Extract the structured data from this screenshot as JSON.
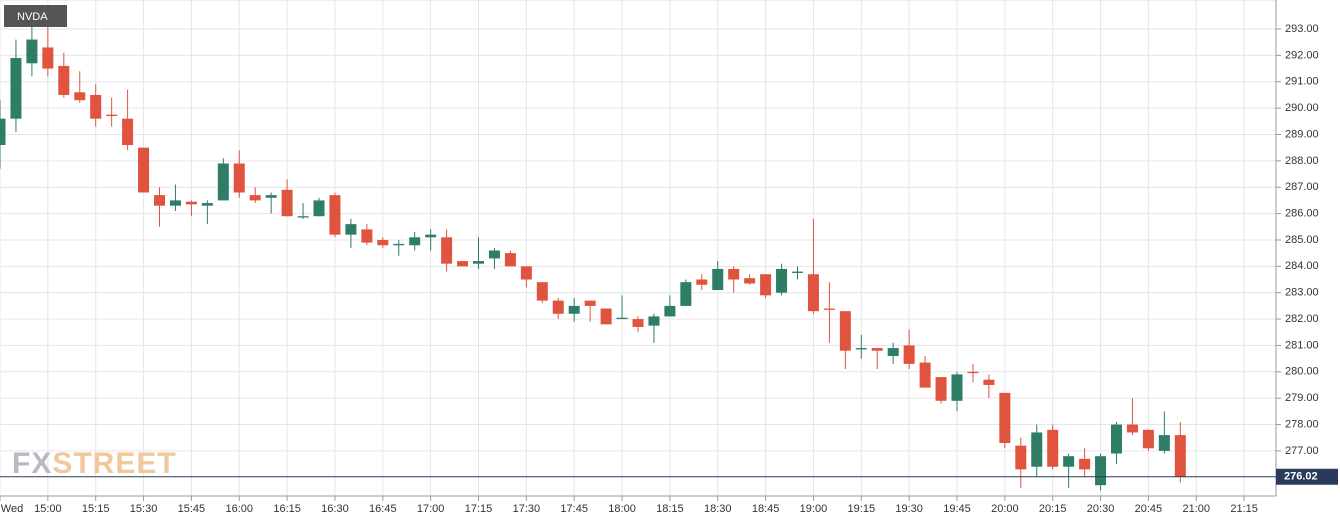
{
  "chart_data": {
    "type": "candlestick",
    "title": "NVDA",
    "watermark": [
      "FX",
      "STREET"
    ],
    "x": [
      "14:45",
      "14:50",
      "14:55",
      "15:00",
      "15:05",
      "15:10",
      "15:15",
      "15:20",
      "15:25",
      "15:30",
      "15:35",
      "15:40",
      "15:45",
      "15:50",
      "15:55",
      "16:00",
      "16:05",
      "16:10",
      "16:15",
      "16:20",
      "16:25",
      "16:30",
      "16:35",
      "16:40",
      "16:45",
      "16:50",
      "16:55",
      "17:00",
      "17:05",
      "17:10",
      "17:15",
      "17:20",
      "17:25",
      "17:30",
      "17:35",
      "17:40",
      "17:45",
      "17:50",
      "17:55",
      "18:00",
      "18:05",
      "18:10",
      "18:15",
      "18:20",
      "18:25",
      "18:30",
      "18:35",
      "18:40",
      "18:45",
      "18:50",
      "18:55",
      "19:00",
      "19:05",
      "19:10",
      "19:15",
      "19:20",
      "19:25",
      "19:30",
      "19:35",
      "19:40",
      "19:45",
      "19:50",
      "19:55",
      "20:00",
      "20:05",
      "20:10",
      "20:15",
      "20:20",
      "20:25",
      "20:30",
      "20:35",
      "20:40",
      "20:45",
      "20:50",
      "20:55"
    ],
    "open": [
      288.6,
      289.6,
      291.7,
      292.3,
      291.6,
      290.6,
      290.5,
      289.75,
      289.6,
      288.5,
      286.7,
      286.3,
      286.45,
      286.3,
      286.5,
      287.9,
      286.7,
      286.6,
      286.9,
      285.85,
      285.9,
      286.7,
      285.2,
      285.4,
      285.0,
      284.8,
      284.8,
      285.1,
      285.1,
      284.2,
      284.1,
      284.3,
      284.5,
      284.0,
      283.4,
      282.7,
      282.2,
      282.7,
      282.4,
      282.0,
      282.0,
      281.75,
      282.1,
      282.5,
      283.5,
      283.1,
      283.9,
      283.55,
      283.7,
      283.0,
      283.75,
      283.7,
      282.4,
      282.3,
      280.85,
      280.9,
      280.6,
      281.0,
      280.35,
      279.8,
      278.9,
      280.0,
      279.7,
      279.2,
      277.2,
      276.4,
      277.8,
      276.4,
      276.7,
      275.7,
      276.9,
      278.0,
      277.8,
      277.0,
      277.6
    ],
    "high": [
      290.3,
      292.6,
      293.2,
      293.2,
      292.1,
      291.4,
      290.9,
      290.4,
      290.7,
      288.5,
      287.0,
      287.1,
      286.5,
      286.5,
      288.1,
      288.4,
      287.0,
      286.8,
      287.3,
      286.4,
      286.6,
      286.8,
      285.8,
      285.6,
      285.1,
      285.0,
      285.3,
      285.4,
      285.4,
      284.2,
      285.1,
      284.7,
      284.6,
      284.0,
      283.4,
      282.8,
      282.8,
      282.7,
      282.4,
      282.9,
      282.1,
      282.2,
      282.9,
      283.5,
      283.7,
      284.2,
      284.0,
      283.7,
      283.7,
      284.1,
      284.0,
      285.8,
      283.4,
      282.3,
      281.4,
      280.9,
      281.1,
      281.6,
      280.6,
      279.8,
      280.0,
      280.3,
      279.9,
      279.2,
      277.5,
      278.0,
      278.0,
      276.9,
      277.1,
      276.9,
      278.1,
      279.0,
      277.8,
      278.5,
      278.1
    ],
    "low": [
      287.7,
      289.1,
      291.2,
      291.2,
      290.4,
      290.2,
      289.3,
      289.3,
      288.4,
      286.8,
      285.5,
      286.1,
      285.9,
      285.6,
      286.5,
      286.6,
      286.4,
      286.0,
      285.9,
      285.8,
      285.9,
      285.1,
      284.7,
      284.8,
      284.7,
      284.4,
      284.6,
      284.6,
      283.8,
      284.0,
      283.9,
      283.9,
      284.0,
      283.2,
      282.6,
      282.0,
      281.9,
      281.9,
      281.8,
      282.0,
      281.5,
      281.1,
      282.1,
      282.5,
      283.1,
      283.1,
      283.0,
      283.3,
      282.8,
      282.9,
      283.5,
      282.2,
      281.1,
      280.1,
      280.5,
      280.1,
      280.3,
      280.1,
      279.4,
      278.8,
      278.5,
      279.6,
      279.0,
      277.1,
      275.6,
      276.0,
      276.3,
      275.6,
      276.0,
      275.5,
      276.5,
      277.6,
      277.0,
      276.9,
      275.8
    ],
    "close": [
      289.6,
      291.9,
      292.6,
      291.5,
      290.5,
      290.3,
      289.6,
      289.7,
      288.6,
      286.8,
      286.3,
      286.5,
      286.35,
      286.4,
      287.9,
      286.8,
      286.5,
      286.7,
      285.9,
      285.9,
      286.5,
      285.2,
      285.6,
      284.9,
      284.8,
      284.85,
      285.1,
      285.2,
      284.1,
      284.0,
      284.2,
      284.6,
      284.0,
      283.5,
      282.7,
      282.2,
      282.5,
      282.5,
      281.8,
      282.05,
      281.7,
      282.1,
      282.5,
      283.4,
      283.3,
      283.9,
      283.5,
      283.35,
      282.9,
      283.9,
      283.8,
      282.3,
      282.35,
      280.8,
      280.9,
      280.8,
      280.9,
      280.3,
      279.4,
      278.9,
      279.9,
      279.95,
      279.5,
      277.3,
      276.3,
      277.7,
      276.4,
      276.8,
      276.3,
      276.8,
      278.0,
      277.7,
      277.1,
      277.6,
      276.02
    ],
    "up_color": "#2e7d67",
    "down_color": "#e0533f",
    "last_price": 276.02,
    "xlim": [
      "14:45",
      "21:25"
    ],
    "xticks": [
      {
        "value": "14:45",
        "label": "Wed"
      },
      "15:00",
      "15:15",
      "15:30",
      "15:45",
      "16:00",
      "16:15",
      "16:30",
      "16:45",
      "17:00",
      "17:15",
      "17:30",
      "17:45",
      "18:00",
      "18:15",
      "18:30",
      "18:45",
      "19:00",
      "19:15",
      "19:30",
      "19:45",
      "20:00",
      "20:15",
      "20:30",
      "20:45",
      "21:00",
      "21:15"
    ],
    "ylim": [
      275.29,
      294.1
    ],
    "yticks": [
      {
        "value": 277,
        "label": "277.00"
      },
      {
        "value": 278,
        "label": "278.00"
      },
      {
        "value": 279,
        "label": "279.00"
      },
      {
        "value": 280,
        "label": "280.00"
      },
      {
        "value": 281,
        "label": "281.00"
      },
      {
        "value": 282,
        "label": "282.00"
      },
      {
        "value": 283,
        "label": "283.00"
      },
      {
        "value": 284,
        "label": "284.00"
      },
      {
        "value": 285,
        "label": "285.00"
      },
      {
        "value": 286,
        "label": "286.00"
      },
      {
        "value": 287,
        "label": "287.00"
      },
      {
        "value": 288,
        "label": "288.00"
      },
      {
        "value": 289,
        "label": "289.00"
      },
      {
        "value": 290,
        "label": "290.00"
      },
      {
        "value": 291,
        "label": "291.00"
      },
      {
        "value": 292,
        "label": "292.00"
      },
      {
        "value": 293,
        "label": "293.00"
      }
    ],
    "grid": true
  }
}
